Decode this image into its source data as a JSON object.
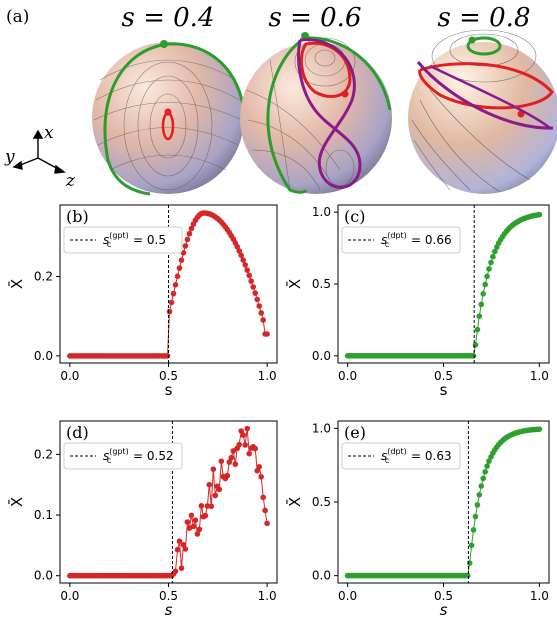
{
  "panel_a": {
    "label": "(a)",
    "titles": [
      "s = 0.4",
      "s = 0.6",
      "s = 0.8"
    ],
    "axes": {
      "x": "x",
      "y": "y",
      "z": "z"
    }
  },
  "chart_data": [
    {
      "id": "b",
      "panel_label": "(b)",
      "type": "line",
      "color": "#d62728",
      "xlabel": "s",
      "ylabel": "X̄",
      "xlim": [
        -0.05,
        1.05
      ],
      "ylim": [
        -0.018,
        0.38
      ],
      "xticks": [
        0.0,
        0.5,
        1.0
      ],
      "xtick_labels": [
        "0.0",
        "0.5",
        "1.0"
      ],
      "yticks": [
        0.0,
        0.2
      ],
      "ytick_labels": [
        "0.0",
        "0.2"
      ],
      "critical": {
        "value": 0.5,
        "legend_main": "s",
        "legend_sub": "c",
        "legend_sup": "(gpt)",
        "legend_value": " = 0.5"
      },
      "curve": {
        "type": "arc",
        "x0": 0.5,
        "peak_x": 0.68,
        "peak_y": 0.36,
        "x_end": 0.98,
        "y_end": 0.09,
        "last_x": 0.99,
        "last_y": 0.055,
        "start_y": 0.1,
        "noise": 0.0
      },
      "n_points": 100
    },
    {
      "id": "c",
      "panel_label": "(c)",
      "type": "line",
      "color": "#2ca02c",
      "xlabel": "s",
      "ylabel": "X̄",
      "xlim": [
        -0.05,
        1.05
      ],
      "ylim": [
        -0.05,
        1.05
      ],
      "xticks": [
        0.0,
        0.5,
        1.0
      ],
      "xtick_labels": [
        "0.0",
        "0.5",
        "1.0"
      ],
      "yticks": [
        0.0,
        0.5,
        1.0
      ],
      "ytick_labels": [
        "0.0",
        "0.5",
        "1.0"
      ],
      "critical": {
        "value": 0.66,
        "legend_main": "s",
        "legend_sub": "c",
        "legend_sup": "(dpt)",
        "legend_value": " = 0.66"
      },
      "curve": {
        "type": "sat",
        "x0": 0.66,
        "k": 12.0,
        "noise": 0.0
      },
      "n_points": 100
    },
    {
      "id": "d",
      "panel_label": "(d)",
      "type": "line",
      "color": "#d62728",
      "xlabel": "s",
      "ylabel": "X̄",
      "xlim": [
        -0.05,
        1.05
      ],
      "ylim": [
        -0.012,
        0.255
      ],
      "xticks": [
        0.0,
        0.5,
        1.0
      ],
      "xtick_labels": [
        "0.0",
        "0.5",
        "1.0"
      ],
      "yticks": [
        0.0,
        0.1,
        0.2
      ],
      "ytick_labels": [
        "0.0",
        "0.1",
        "0.2"
      ],
      "critical": {
        "value": 0.52,
        "legend_main": "s",
        "legend_sub": "c",
        "legend_sup": "(gpt)",
        "legend_value": " = 0.52"
      },
      "curve": {
        "type": "noisyrise",
        "x0": 0.52,
        "peak_x": 0.88,
        "peak_y": 0.235,
        "x_end": 0.99,
        "y_end": 0.125,
        "noise": 0.03
      },
      "n_points": 100
    },
    {
      "id": "e",
      "panel_label": "(e)",
      "type": "line",
      "color": "#2ca02c",
      "xlabel": "s",
      "ylabel": "X̄",
      "xlim": [
        -0.05,
        1.05
      ],
      "ylim": [
        -0.05,
        1.05
      ],
      "xticks": [
        0.0,
        0.5,
        1.0
      ],
      "xtick_labels": [
        "0.0",
        "0.5",
        "1.0"
      ],
      "yticks": [
        0.0,
        0.5,
        1.0
      ],
      "ytick_labels": [
        "0.0",
        "0.5",
        "1.0"
      ],
      "critical": {
        "value": 0.63,
        "legend_main": "s",
        "legend_sub": "c",
        "legend_sup": "(dpt)",
        "legend_value": " = 0.63"
      },
      "curve": {
        "type": "sat",
        "x0": 0.63,
        "k": 14.0,
        "noise": 0.0
      },
      "n_points": 100
    }
  ]
}
